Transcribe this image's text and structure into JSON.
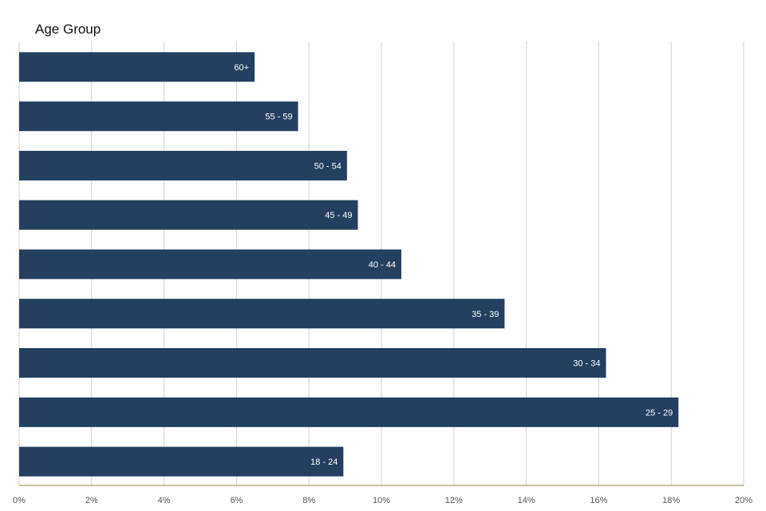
{
  "chart_data": {
    "type": "bar",
    "orientation": "horizontal",
    "title": "Age Group",
    "xlabel": "",
    "ylabel": "",
    "categories": [
      "60+",
      "55 - 59",
      "50 - 54",
      "45 - 49",
      "40 - 44",
      "35 - 39",
      "30 - 34",
      "25 - 29",
      "18 - 24"
    ],
    "values": [
      6.5,
      7.7,
      9.05,
      9.35,
      10.55,
      13.4,
      16.2,
      18.2,
      8.95
    ],
    "xlim": [
      0,
      20
    ],
    "x_ticks": [
      "0%",
      "2%",
      "4%",
      "6%",
      "8%",
      "10%",
      "12%",
      "14%",
      "16%",
      "18%",
      "20%"
    ],
    "grid": true,
    "bar_color": "#243f5f",
    "label_color": "#ffffff",
    "axis_color": "#a89a5e",
    "grid_color": "#d9d9d9"
  }
}
